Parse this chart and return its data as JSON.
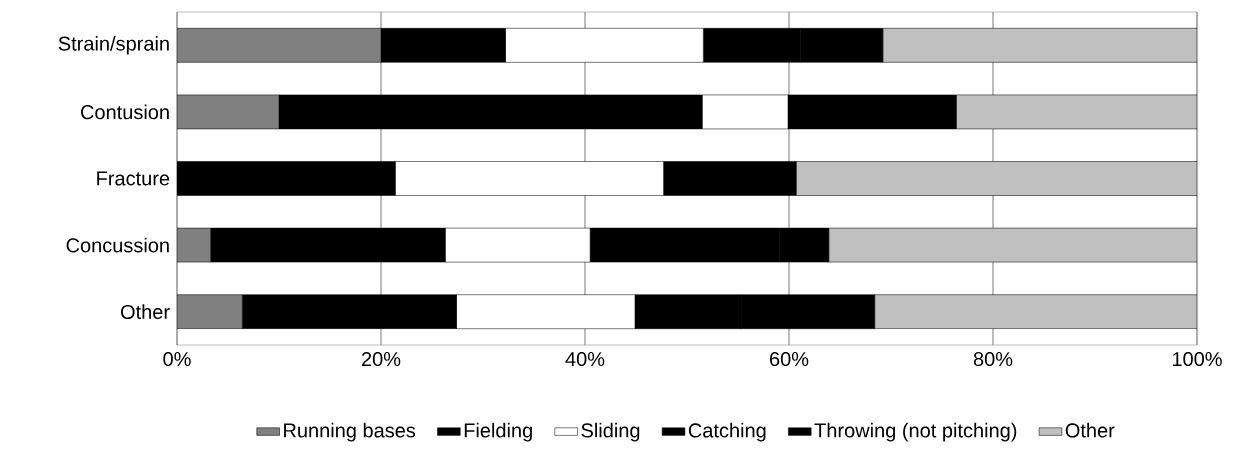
{
  "chart_data": {
    "type": "bar",
    "orientation": "horizontal",
    "stacked": true,
    "categories": [
      "Strain/sprain",
      "Contusion",
      "Fracture",
      "Concussion",
      "Other"
    ],
    "series": [
      {
        "name": "Running bases",
        "color": "#808080",
        "values": [
          20.0,
          10.0,
          0,
          3.3,
          6.4
        ]
      },
      {
        "name": "Fielding",
        "color": "#000000",
        "values": [
          12.2,
          41.5,
          21.4,
          23.0,
          21.0
        ]
      },
      {
        "name": "Sliding",
        "color": "#ffffff",
        "values": [
          19.4,
          8.4,
          26.3,
          14.2,
          17.5
        ]
      },
      {
        "name": "Catching",
        "color": "#000000",
        "values": [
          9.5,
          16.5,
          0,
          18.6,
          10.4
        ]
      },
      {
        "name": "Throwing (not pitching)",
        "color": "#000000",
        "values": [
          8.1,
          0,
          13.0,
          4.8,
          13.1
        ]
      },
      {
        "name": "Other",
        "color": "#c0c0c0",
        "values": [
          30.8,
          23.6,
          39.3,
          36.1,
          31.6
        ]
      }
    ],
    "xlim": [
      0,
      100
    ],
    "xticks": [
      {
        "value": 0,
        "label": "0%"
      },
      {
        "value": 20,
        "label": "20%"
      },
      {
        "value": 40,
        "label": "40%"
      },
      {
        "value": 60,
        "label": "60%"
      },
      {
        "value": 80,
        "label": "80%"
      },
      {
        "value": 100,
        "label": "100%"
      }
    ],
    "grid": "x",
    "legend": "bottom"
  }
}
